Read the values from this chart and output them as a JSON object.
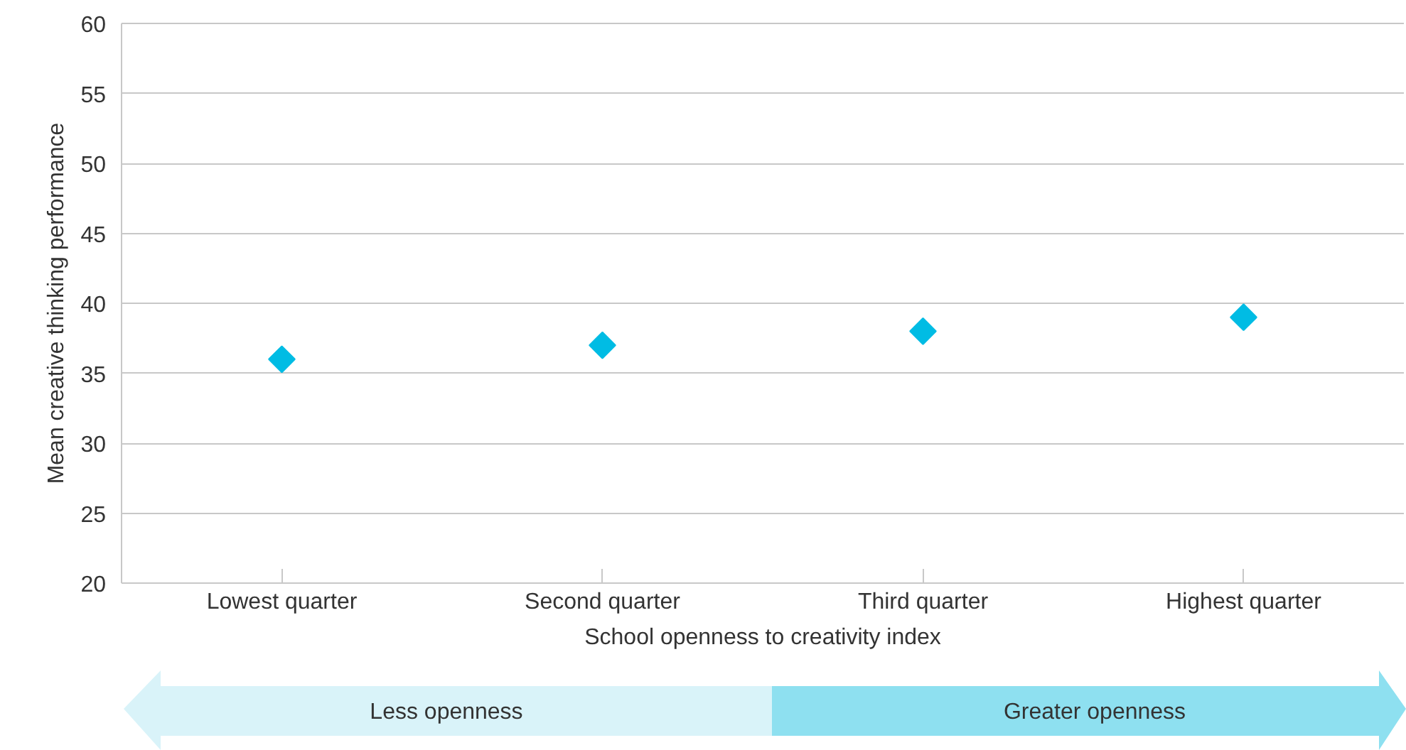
{
  "chart_data": {
    "type": "scatter",
    "xlabel": "School openness to creativity index",
    "ylabel": "Mean creative thinking performance",
    "categories": [
      "Lowest quarter",
      "Second quarter",
      "Third quarter",
      "Highest quarter"
    ],
    "series": [
      {
        "color": "#00bce4",
        "values": [
          36,
          37,
          38,
          39
        ]
      }
    ],
    "marker": "diamond",
    "ylim": [
      20,
      60
    ],
    "yticks": [
      20,
      25,
      30,
      35,
      40,
      45,
      50,
      55,
      60
    ],
    "grid": "y",
    "annotations": [
      "Less openness",
      "Greater openness"
    ]
  }
}
